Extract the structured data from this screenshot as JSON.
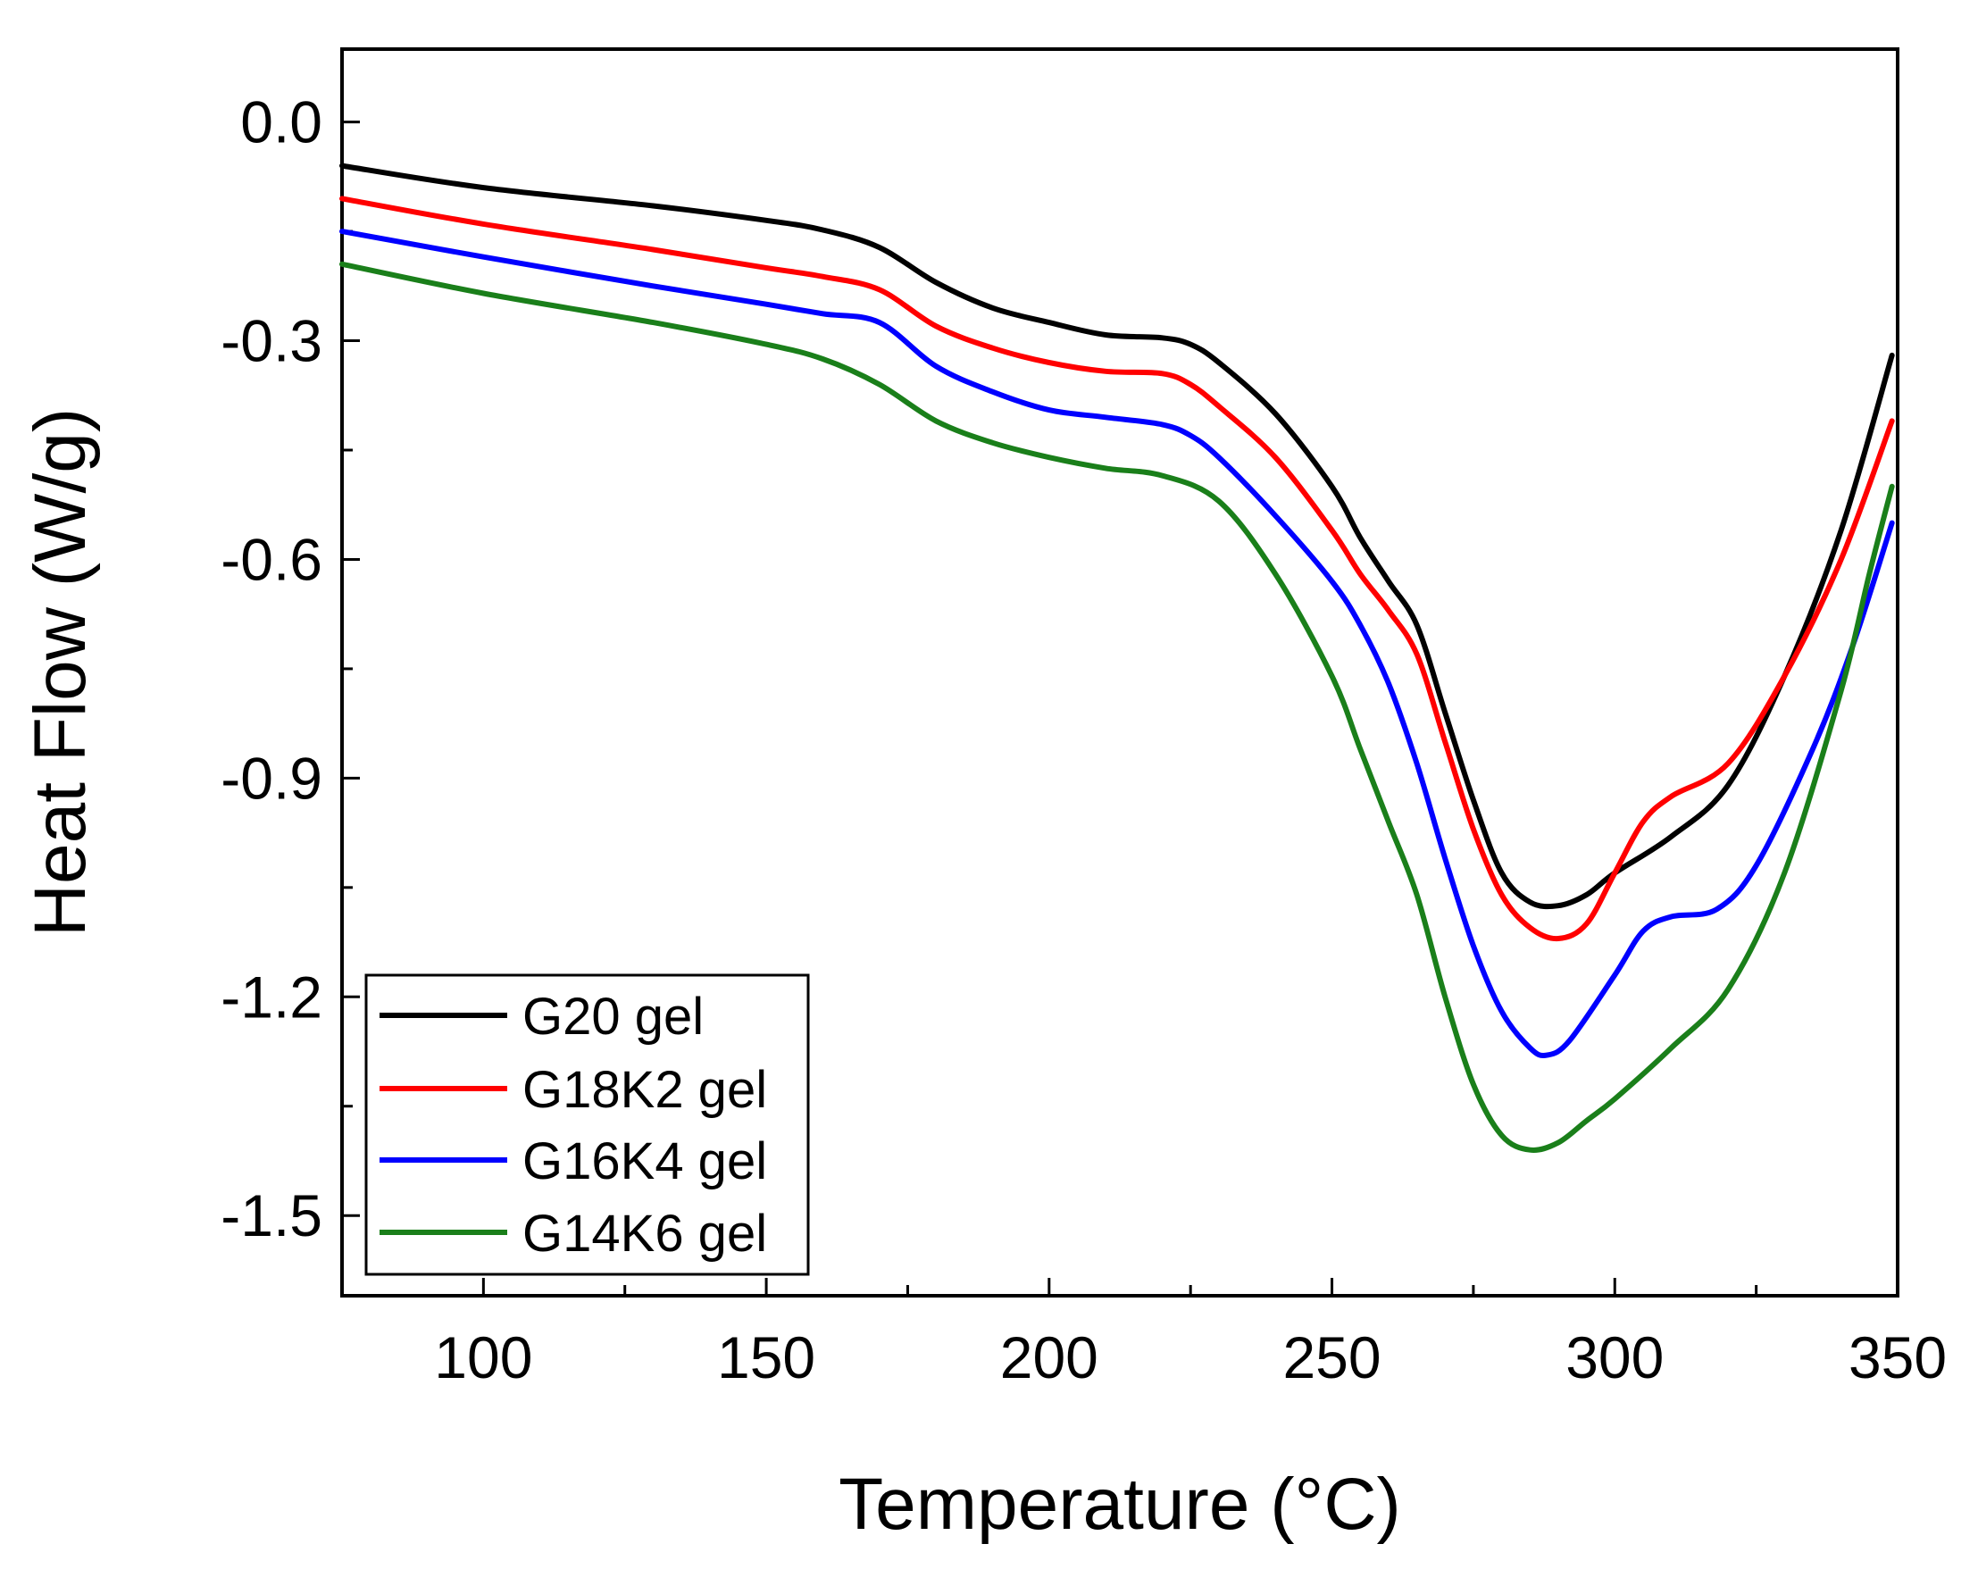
{
  "chart_data": {
    "type": "line",
    "title": "",
    "xlabel": "Temperature (°C)",
    "ylabel": "Heat Flow (W/g)",
    "xlim": [
      75,
      350
    ],
    "ylim": [
      -1.61,
      0.1
    ],
    "x_ticks": [
      100,
      150,
      200,
      250,
      300,
      350
    ],
    "x_tick_labels": [
      "100",
      "150",
      "200",
      "250",
      "300",
      "350"
    ],
    "y_ticks": [
      0.0,
      -0.3,
      -0.6,
      -0.9,
      -1.2,
      -1.5
    ],
    "y_tick_labels": [
      "0.0",
      "-0.3",
      "-0.6",
      "-0.9",
      "-1.2",
      "-1.5"
    ],
    "grid": false,
    "legend_position": "bottom-left",
    "series": [
      {
        "name": "G20 gel",
        "color": "#000000",
        "points": [
          [
            75,
            -0.06
          ],
          [
            100,
            -0.09
          ],
          [
            130,
            -0.115
          ],
          [
            150,
            -0.135
          ],
          [
            160,
            -0.148
          ],
          [
            170,
            -0.172
          ],
          [
            180,
            -0.22
          ],
          [
            190,
            -0.255
          ],
          [
            200,
            -0.275
          ],
          [
            210,
            -0.292
          ],
          [
            220,
            -0.296
          ],
          [
            225,
            -0.305
          ],
          [
            230,
            -0.33
          ],
          [
            240,
            -0.4
          ],
          [
            250,
            -0.5
          ],
          [
            255,
            -0.57
          ],
          [
            260,
            -0.63
          ],
          [
            265,
            -0.69
          ],
          [
            270,
            -0.81
          ],
          [
            275,
            -0.93
          ],
          [
            280,
            -1.03
          ],
          [
            285,
            -1.07
          ],
          [
            290,
            -1.075
          ],
          [
            295,
            -1.06
          ],
          [
            300,
            -1.03
          ],
          [
            310,
            -0.98
          ],
          [
            320,
            -0.91
          ],
          [
            330,
            -0.76
          ],
          [
            340,
            -0.56
          ],
          [
            349,
            -0.32
          ]
        ]
      },
      {
        "name": "G18K2 gel",
        "color": "#ff0000",
        "points": [
          [
            75,
            -0.105
          ],
          [
            100,
            -0.14
          ],
          [
            130,
            -0.175
          ],
          [
            150,
            -0.2
          ],
          [
            160,
            -0.212
          ],
          [
            170,
            -0.23
          ],
          [
            180,
            -0.28
          ],
          [
            190,
            -0.31
          ],
          [
            200,
            -0.33
          ],
          [
            210,
            -0.342
          ],
          [
            220,
            -0.345
          ],
          [
            225,
            -0.36
          ],
          [
            230,
            -0.39
          ],
          [
            240,
            -0.46
          ],
          [
            250,
            -0.56
          ],
          [
            255,
            -0.62
          ],
          [
            260,
            -0.67
          ],
          [
            265,
            -0.73
          ],
          [
            270,
            -0.85
          ],
          [
            275,
            -0.97
          ],
          [
            280,
            -1.06
          ],
          [
            285,
            -1.105
          ],
          [
            290,
            -1.12
          ],
          [
            295,
            -1.1
          ],
          [
            300,
            -1.03
          ],
          [
            305,
            -0.96
          ],
          [
            310,
            -0.925
          ],
          [
            320,
            -0.88
          ],
          [
            330,
            -0.76
          ],
          [
            340,
            -0.6
          ],
          [
            349,
            -0.41
          ]
        ]
      },
      {
        "name": "G16K4 gel",
        "color": "#0000ff",
        "points": [
          [
            75,
            -0.15
          ],
          [
            100,
            -0.185
          ],
          [
            130,
            -0.225
          ],
          [
            150,
            -0.25
          ],
          [
            160,
            -0.263
          ],
          [
            170,
            -0.275
          ],
          [
            180,
            -0.335
          ],
          [
            190,
            -0.37
          ],
          [
            200,
            -0.395
          ],
          [
            210,
            -0.405
          ],
          [
            220,
            -0.415
          ],
          [
            225,
            -0.43
          ],
          [
            230,
            -0.46
          ],
          [
            240,
            -0.54
          ],
          [
            250,
            -0.63
          ],
          [
            255,
            -0.69
          ],
          [
            260,
            -0.77
          ],
          [
            265,
            -0.88
          ],
          [
            270,
            -1.01
          ],
          [
            275,
            -1.13
          ],
          [
            280,
            -1.22
          ],
          [
            285,
            -1.27
          ],
          [
            288,
            -1.28
          ],
          [
            292,
            -1.26
          ],
          [
            300,
            -1.17
          ],
          [
            305,
            -1.11
          ],
          [
            310,
            -1.09
          ],
          [
            318,
            -1.08
          ],
          [
            325,
            -1.02
          ],
          [
            335,
            -0.86
          ],
          [
            342,
            -0.72
          ],
          [
            349,
            -0.55
          ]
        ]
      },
      {
        "name": "G14K6 gel",
        "color": "#1a7f1a",
        "points": [
          [
            75,
            -0.195
          ],
          [
            100,
            -0.235
          ],
          [
            130,
            -0.275
          ],
          [
            150,
            -0.305
          ],
          [
            160,
            -0.325
          ],
          [
            170,
            -0.36
          ],
          [
            180,
            -0.41
          ],
          [
            190,
            -0.44
          ],
          [
            200,
            -0.46
          ],
          [
            210,
            -0.475
          ],
          [
            220,
            -0.485
          ],
          [
            230,
            -0.52
          ],
          [
            240,
            -0.62
          ],
          [
            250,
            -0.76
          ],
          [
            255,
            -0.86
          ],
          [
            260,
            -0.96
          ],
          [
            265,
            -1.06
          ],
          [
            270,
            -1.2
          ],
          [
            275,
            -1.32
          ],
          [
            280,
            -1.39
          ],
          [
            285,
            -1.41
          ],
          [
            290,
            -1.4
          ],
          [
            295,
            -1.37
          ],
          [
            300,
            -1.34
          ],
          [
            310,
            -1.27
          ],
          [
            320,
            -1.19
          ],
          [
            330,
            -1.03
          ],
          [
            340,
            -0.78
          ],
          [
            345,
            -0.62
          ],
          [
            349,
            -0.5
          ]
        ]
      }
    ]
  }
}
